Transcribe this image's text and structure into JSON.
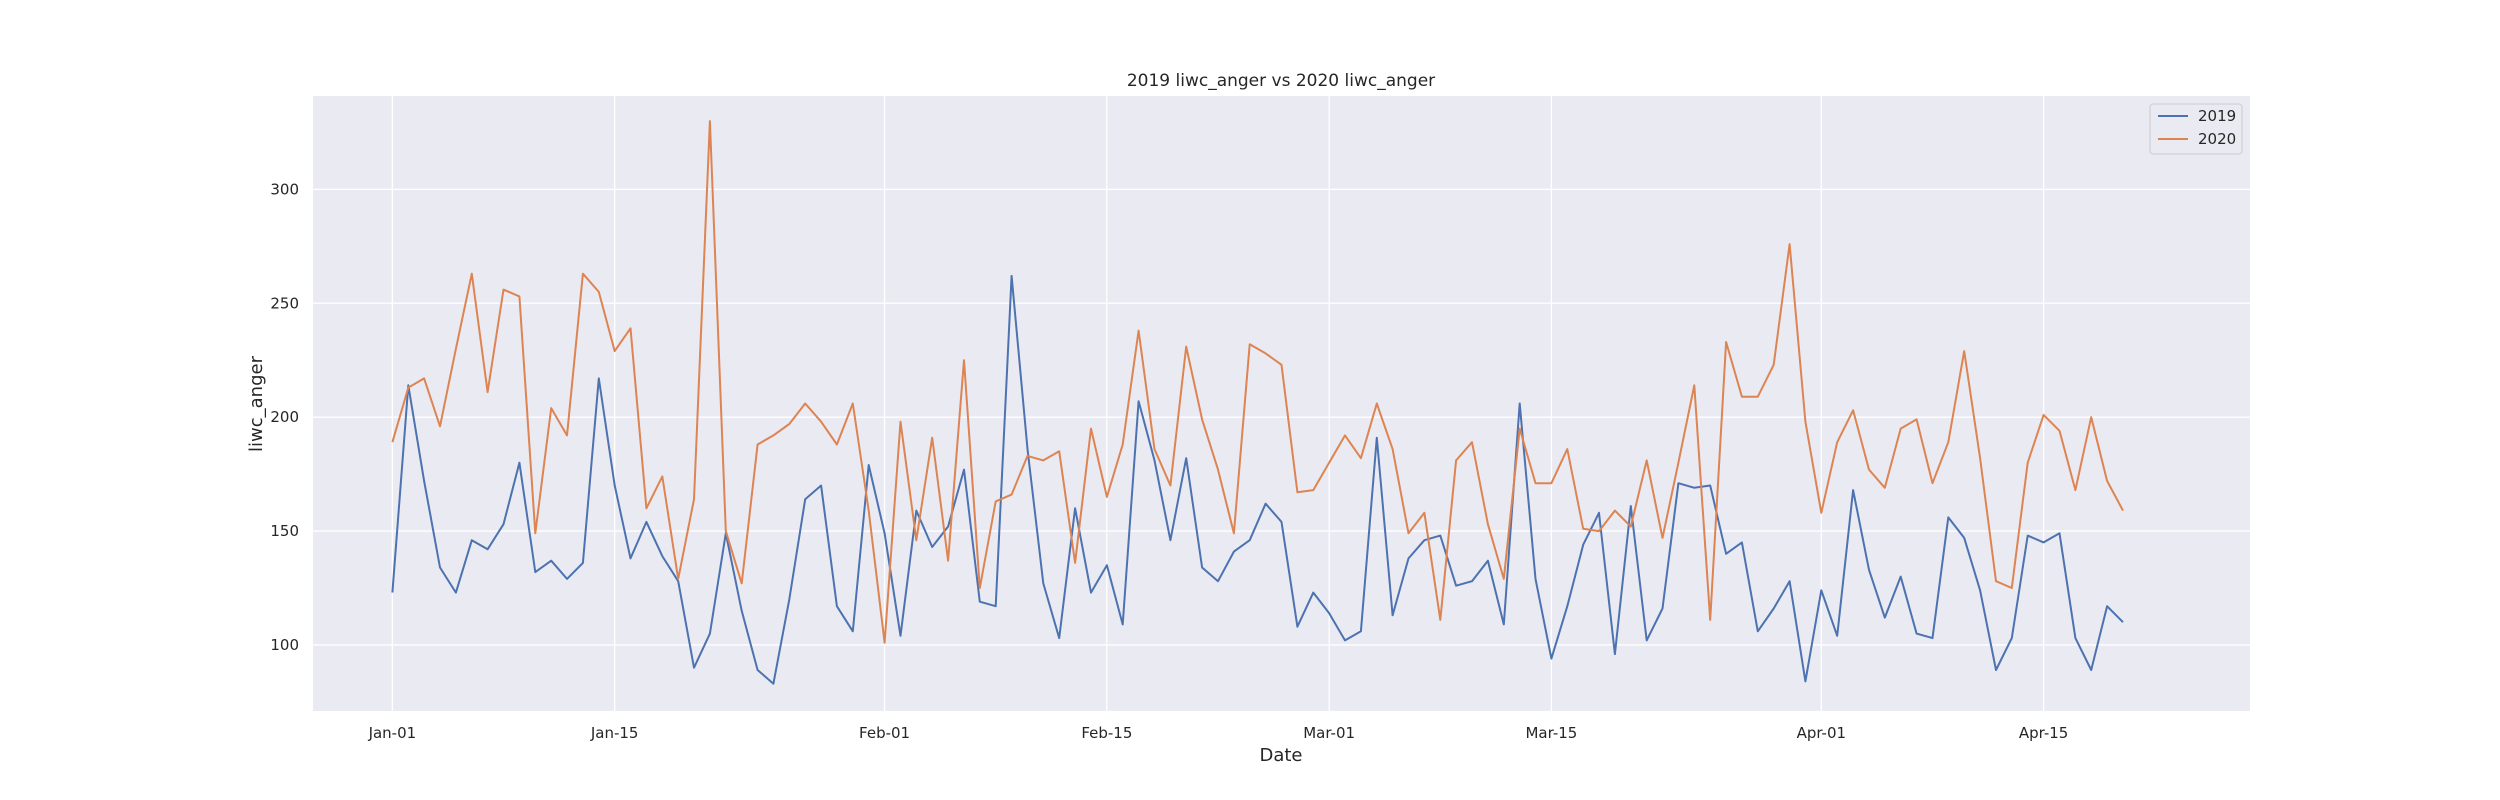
{
  "chart_data": {
    "type": "line",
    "title": "2019 liwc_anger vs 2020 liwc_anger",
    "xlabel": "Date",
    "ylabel": "liwc_anger",
    "x_ticks": [
      {
        "day": 0,
        "label": "Jan-01"
      },
      {
        "day": 14,
        "label": "Jan-15"
      },
      {
        "day": 31,
        "label": "Feb-01"
      },
      {
        "day": 45,
        "label": "Feb-15"
      },
      {
        "day": 59,
        "label": "Mar-01"
      },
      {
        "day": 73,
        "label": "Mar-15"
      },
      {
        "day": 90,
        "label": "Apr-01"
      },
      {
        "day": 104,
        "label": "Apr-15"
      }
    ],
    "y_ticks": [
      100,
      150,
      200,
      250,
      300
    ],
    "xlim": [
      "Dec-27",
      "Apr-27"
    ],
    "ylim": [
      71,
      341
    ],
    "grid": true,
    "background": "#eaeaf2",
    "legend_position": "top-right",
    "series": [
      {
        "name": "2019",
        "color": "#4c72b0",
        "values": [
          123,
          214,
          172,
          134,
          123,
          146,
          142,
          153,
          180,
          132,
          137,
          129,
          136,
          217,
          170,
          138,
          154,
          139,
          128,
          90,
          105,
          149,
          115,
          89,
          83,
          120,
          164,
          170,
          117,
          106,
          179,
          149,
          104,
          159,
          143,
          152,
          177,
          119,
          117,
          262,
          186,
          127,
          103,
          160,
          123,
          135,
          109,
          207,
          181,
          146,
          182,
          134,
          128,
          141,
          146,
          162,
          154,
          108,
          123,
          114,
          102,
          106,
          191,
          113,
          138,
          146,
          148,
          126,
          128,
          137,
          109,
          206,
          129,
          94,
          117,
          144,
          158,
          96,
          161,
          102,
          116,
          171,
          169,
          170,
          140,
          145,
          106,
          116,
          128,
          84,
          124,
          104,
          168,
          133,
          112,
          130,
          105,
          103,
          156,
          147,
          124,
          89,
          103,
          148,
          145,
          149,
          103,
          89,
          117,
          110
        ]
      },
      {
        "name": "2020",
        "color": "#dd8452",
        "values": [
          189,
          213,
          217,
          196,
          230,
          263,
          211,
          256,
          253,
          149,
          204,
          192,
          263,
          255,
          229,
          239,
          160,
          174,
          129,
          164,
          330,
          150,
          127,
          188,
          192,
          197,
          206,
          198,
          188,
          206,
          159,
          101,
          198,
          146,
          191,
          137,
          225,
          125,
          163,
          166,
          183,
          181,
          185,
          136,
          195,
          165,
          188,
          238,
          186,
          170,
          231,
          199,
          177,
          149,
          232,
          228,
          223,
          167,
          168,
          180,
          192,
          182,
          206,
          186,
          149,
          158,
          111,
          181,
          189,
          153,
          129,
          195,
          171,
          171,
          186,
          151,
          150,
          159,
          152,
          181,
          147,
          180,
          214,
          111,
          233,
          209,
          209,
          223,
          276,
          198,
          158,
          189,
          203,
          177,
          169,
          195,
          199,
          171,
          189,
          229,
          182,
          128,
          125,
          180,
          201,
          194,
          168,
          200,
          172,
          159
        ]
      }
    ]
  }
}
